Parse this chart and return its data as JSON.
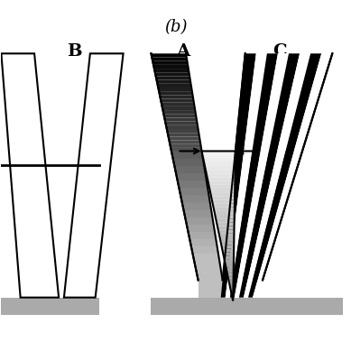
{
  "title": "(b)",
  "label_B": "B",
  "label_A": "A",
  "label_C": "C",
  "bg_color": "#ffffff",
  "fig_width": 3.89,
  "fig_height": 3.89,
  "dpi": 100
}
